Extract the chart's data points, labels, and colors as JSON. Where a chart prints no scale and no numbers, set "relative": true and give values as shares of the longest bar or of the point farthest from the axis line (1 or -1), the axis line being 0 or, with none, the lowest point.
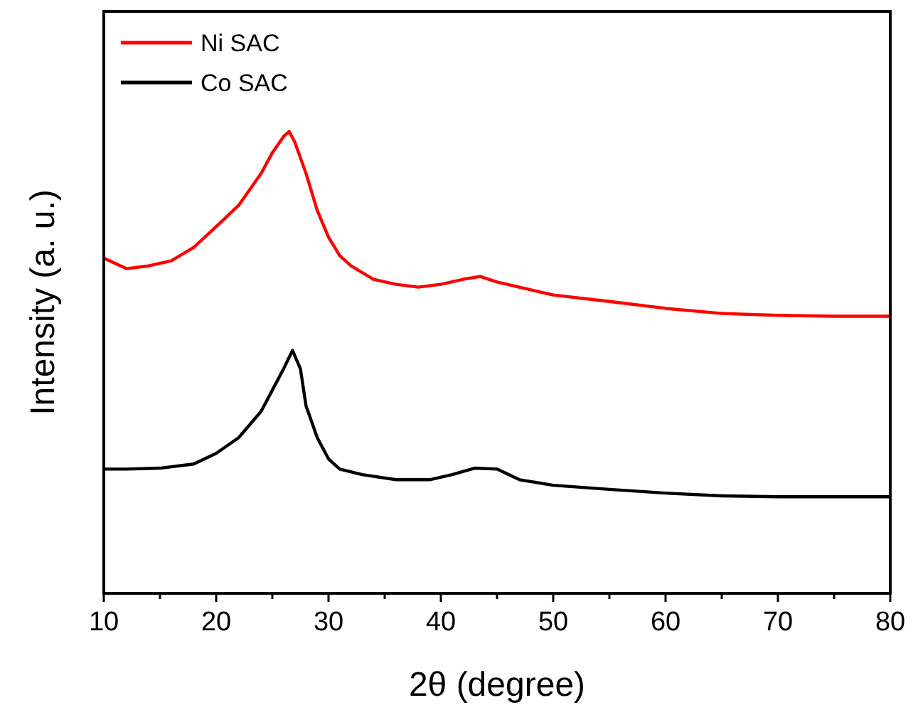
{
  "chart_data": {
    "type": "line",
    "relative": true,
    "xlabel": "2θ (degree)",
    "ylabel": "Intensity (a. u.)",
    "legend": "top left",
    "grid": false,
    "marker": "none",
    "line_style": "solid",
    "xlim": [
      10,
      80
    ],
    "xticks": [
      10,
      {
        "value": 15,
        "label": null
      },
      20,
      {
        "value": 25,
        "label": null
      },
      30,
      {
        "value": 35,
        "label": null
      },
      40,
      {
        "value": 45,
        "label": null
      },
      50,
      {
        "value": 55,
        "label": null
      },
      60,
      {
        "value": 65,
        "label": null
      },
      70,
      {
        "value": 75,
        "label": null
      },
      80
    ],
    "series": [
      {
        "name": "Ni SAC",
        "color": "#ff0000",
        "x": [
          10,
          12,
          14,
          16,
          18,
          20,
          22,
          24,
          25,
          26,
          26.5,
          27,
          28,
          29,
          30,
          31,
          32,
          34,
          36,
          38,
          40,
          42,
          43.5,
          45,
          48,
          50,
          55,
          60,
          65,
          70,
          75,
          80
        ],
        "values": [
          0.726,
          0.703,
          0.709,
          0.72,
          0.749,
          0.794,
          0.84,
          0.909,
          0.954,
          0.989,
          1,
          0.977,
          0.909,
          0.829,
          0.771,
          0.731,
          0.709,
          0.68,
          0.669,
          0.663,
          0.669,
          0.68,
          0.686,
          0.674,
          0.657,
          0.646,
          0.632,
          0.617,
          0.606,
          0.602,
          0.6,
          0.6
        ]
      },
      {
        "name": "Co SAC",
        "color": "#000000",
        "x": [
          10,
          12,
          15,
          18,
          20,
          22,
          24,
          25,
          26,
          26.8,
          27.5,
          28,
          29,
          30,
          31,
          33,
          36,
          39,
          41,
          43,
          45,
          47,
          50,
          55,
          60,
          65,
          70,
          75,
          80
        ],
        "values": [
          0.269,
          0.269,
          0.271,
          0.28,
          0.303,
          0.337,
          0.394,
          0.44,
          0.486,
          0.526,
          0.486,
          0.406,
          0.337,
          0.291,
          0.269,
          0.257,
          0.246,
          0.246,
          0.257,
          0.271,
          0.269,
          0.246,
          0.234,
          0.225,
          0.217,
          0.211,
          0.209,
          0.209,
          0.209
        ]
      }
    ]
  }
}
